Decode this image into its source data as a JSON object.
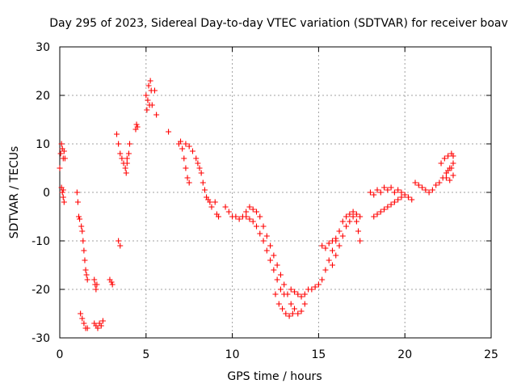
{
  "chart_data": {
    "type": "scatter",
    "title": "Day 295 of 2023, Sidereal Day-to-day VTEC variation (SDTVAR) for receiver boav",
    "xlabel": "GPS time / hours",
    "ylabel": "SDTVAR / TECUs",
    "xlim": [
      0,
      25
    ],
    "ylim": [
      -30,
      30
    ],
    "xticks": [
      0,
      5,
      10,
      15,
      20,
      25
    ],
    "yticks": [
      -30,
      -20,
      -10,
      0,
      10,
      20,
      30
    ],
    "xtick_labels": [
      "0",
      "5",
      "10",
      "15",
      "20",
      "25"
    ],
    "ytick_labels": [
      "-30",
      "-20",
      "-10",
      "0",
      "10",
      "20",
      "30"
    ],
    "grid": true,
    "marker": "plus",
    "color": "#ff0000",
    "series": [
      {
        "name": "SDTVAR",
        "points": [
          [
            0.0,
            5
          ],
          [
            0.05,
            8
          ],
          [
            0.1,
            10
          ],
          [
            0.15,
            9
          ],
          [
            0.2,
            7
          ],
          [
            0.25,
            8.5
          ],
          [
            0.3,
            7
          ],
          [
            0.1,
            1
          ],
          [
            0.15,
            0
          ],
          [
            0.2,
            -1
          ],
          [
            0.25,
            -2
          ],
          [
            0.2,
            0.5
          ],
          [
            1.0,
            0
          ],
          [
            1.05,
            -2
          ],
          [
            1.1,
            -5
          ],
          [
            1.15,
            -5.5
          ],
          [
            1.25,
            -7
          ],
          [
            1.3,
            -8
          ],
          [
            1.35,
            -10
          ],
          [
            1.4,
            -12
          ],
          [
            1.45,
            -14
          ],
          [
            1.5,
            -16
          ],
          [
            1.55,
            -17
          ],
          [
            1.6,
            -18
          ],
          [
            1.2,
            -25
          ],
          [
            1.3,
            -26
          ],
          [
            1.4,
            -27
          ],
          [
            1.5,
            -28
          ],
          [
            1.6,
            -28
          ],
          [
            2.0,
            -18
          ],
          [
            2.05,
            -19
          ],
          [
            2.1,
            -20
          ],
          [
            2.15,
            -19
          ],
          [
            2.0,
            -27
          ],
          [
            2.1,
            -27.5
          ],
          [
            2.2,
            -28
          ],
          [
            2.3,
            -27
          ],
          [
            2.4,
            -27.5
          ],
          [
            2.5,
            -26.5
          ],
          [
            2.9,
            -18
          ],
          [
            3.0,
            -18.5
          ],
          [
            3.05,
            -19
          ],
          [
            3.3,
            12
          ],
          [
            3.4,
            10
          ],
          [
            3.5,
            8
          ],
          [
            3.4,
            -10
          ],
          [
            3.5,
            -11
          ],
          [
            3.6,
            7
          ],
          [
            3.7,
            6
          ],
          [
            3.8,
            5
          ],
          [
            3.85,
            4
          ],
          [
            3.9,
            6
          ],
          [
            4.0,
            8
          ],
          [
            4.05,
            10
          ],
          [
            3.9,
            7
          ],
          [
            4.4,
            13
          ],
          [
            4.45,
            14
          ],
          [
            4.5,
            13.5
          ],
          [
            5.0,
            20
          ],
          [
            5.05,
            17
          ],
          [
            5.1,
            19
          ],
          [
            5.15,
            22
          ],
          [
            5.2,
            18
          ],
          [
            5.25,
            23
          ],
          [
            5.3,
            21
          ],
          [
            5.35,
            18
          ],
          [
            5.5,
            21
          ],
          [
            5.6,
            16
          ],
          [
            6.3,
            12.5
          ],
          [
            6.9,
            10
          ],
          [
            7.0,
            10.5
          ],
          [
            7.1,
            9
          ],
          [
            7.2,
            7
          ],
          [
            7.3,
            5
          ],
          [
            7.4,
            3
          ],
          [
            7.5,
            2
          ],
          [
            7.3,
            10
          ],
          [
            7.5,
            9.5
          ],
          [
            7.7,
            8.5
          ],
          [
            7.9,
            7
          ],
          [
            8.0,
            6
          ],
          [
            8.1,
            5
          ],
          [
            8.2,
            4
          ],
          [
            8.3,
            2
          ],
          [
            8.4,
            0.5
          ],
          [
            8.5,
            -1
          ],
          [
            8.6,
            -1.5
          ],
          [
            8.7,
            -2
          ],
          [
            8.8,
            -3
          ],
          [
            9.0,
            -2
          ],
          [
            9.1,
            -4.5
          ],
          [
            9.2,
            -5
          ],
          [
            9.6,
            -3
          ],
          [
            9.8,
            -4
          ],
          [
            10.0,
            -5
          ],
          [
            10.2,
            -5
          ],
          [
            10.4,
            -5.5
          ],
          [
            10.6,
            -5
          ],
          [
            10.8,
            -4
          ],
          [
            11.0,
            -3
          ],
          [
            11.2,
            -3.5
          ],
          [
            11.4,
            -4
          ],
          [
            11.6,
            -5
          ],
          [
            11.8,
            -7
          ],
          [
            12.0,
            -9
          ],
          [
            12.2,
            -11
          ],
          [
            12.4,
            -13
          ],
          [
            12.6,
            -15
          ],
          [
            12.8,
            -17
          ],
          [
            13.0,
            -19
          ],
          [
            13.2,
            -21
          ],
          [
            13.4,
            -23
          ],
          [
            13.6,
            -24
          ],
          [
            13.8,
            -25
          ],
          [
            14.0,
            -24.5
          ],
          [
            14.2,
            -23
          ],
          [
            10.8,
            -5
          ],
          [
            11.0,
            -5.5
          ],
          [
            11.2,
            -6
          ],
          [
            11.4,
            -7
          ],
          [
            11.6,
            -8.5
          ],
          [
            11.8,
            -10
          ],
          [
            12.0,
            -12
          ],
          [
            12.2,
            -14
          ],
          [
            12.4,
            -16
          ],
          [
            12.6,
            -18
          ],
          [
            12.8,
            -20
          ],
          [
            13.0,
            -21
          ],
          [
            12.5,
            -21
          ],
          [
            12.7,
            -23
          ],
          [
            12.9,
            -24
          ],
          [
            13.1,
            -25
          ],
          [
            13.3,
            -25.5
          ],
          [
            13.5,
            -25
          ],
          [
            13.4,
            -20
          ],
          [
            13.6,
            -20.5
          ],
          [
            13.8,
            -21
          ],
          [
            14.0,
            -21.5
          ],
          [
            14.2,
            -21
          ],
          [
            14.4,
            -20
          ],
          [
            14.6,
            -20
          ],
          [
            14.8,
            -19.5
          ],
          [
            15.0,
            -19
          ],
          [
            15.2,
            -18
          ],
          [
            15.4,
            -16
          ],
          [
            15.6,
            -14
          ],
          [
            15.8,
            -12
          ],
          [
            16.0,
            -10
          ],
          [
            16.2,
            -8
          ],
          [
            16.4,
            -6
          ],
          [
            16.6,
            -5
          ],
          [
            16.8,
            -4.5
          ],
          [
            17.0,
            -5
          ],
          [
            17.2,
            -6
          ],
          [
            17.3,
            -8
          ],
          [
            17.4,
            -10
          ],
          [
            15.8,
            -15
          ],
          [
            16.0,
            -13
          ],
          [
            16.2,
            -11
          ],
          [
            16.4,
            -9
          ],
          [
            16.6,
            -7
          ],
          [
            16.8,
            -6
          ],
          [
            15.2,
            -11
          ],
          [
            15.4,
            -11.5
          ],
          [
            15.6,
            -10.5
          ],
          [
            15.8,
            -10
          ],
          [
            16.0,
            -9.5
          ],
          [
            17.0,
            -4
          ],
          [
            17.2,
            -4.5
          ],
          [
            17.4,
            -5
          ],
          [
            18.0,
            0
          ],
          [
            18.2,
            -0.5
          ],
          [
            18.4,
            0.5
          ],
          [
            18.6,
            0
          ],
          [
            18.8,
            1
          ],
          [
            19.0,
            0.5
          ],
          [
            19.2,
            1
          ],
          [
            19.4,
            0
          ],
          [
            19.6,
            0.5
          ],
          [
            19.8,
            0
          ],
          [
            18.2,
            -5
          ],
          [
            18.4,
            -4.5
          ],
          [
            18.6,
            -4
          ],
          [
            18.8,
            -3.5
          ],
          [
            19.0,
            -3
          ],
          [
            19.2,
            -2.5
          ],
          [
            19.4,
            -2
          ],
          [
            19.6,
            -1.5
          ],
          [
            19.8,
            -1
          ],
          [
            20.0,
            -0.5
          ],
          [
            20.2,
            -1
          ],
          [
            20.4,
            -1.5
          ],
          [
            20.6,
            2
          ],
          [
            20.8,
            1.5
          ],
          [
            21.0,
            1
          ],
          [
            21.2,
            0.5
          ],
          [
            21.4,
            0
          ],
          [
            21.6,
            0.5
          ],
          [
            21.8,
            1.5
          ],
          [
            22.0,
            2
          ],
          [
            22.2,
            3
          ],
          [
            22.4,
            4
          ],
          [
            22.6,
            5
          ],
          [
            22.8,
            6
          ],
          [
            22.1,
            6
          ],
          [
            22.3,
            7
          ],
          [
            22.5,
            7.5
          ],
          [
            22.7,
            8
          ],
          [
            22.8,
            7.5
          ],
          [
            22.4,
            3
          ],
          [
            22.6,
            2.5
          ],
          [
            22.8,
            3.5
          ],
          [
            22.5,
            4.5
          ],
          [
            22.7,
            5
          ]
        ]
      }
    ]
  }
}
